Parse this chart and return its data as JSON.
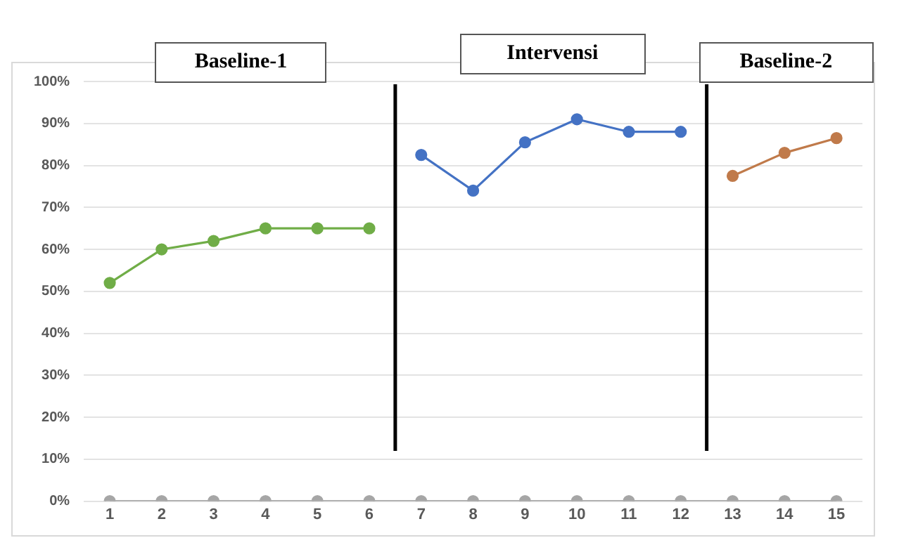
{
  "chart_data": {
    "type": "line",
    "x": [
      1,
      2,
      3,
      4,
      5,
      6,
      7,
      8,
      9,
      10,
      11,
      12,
      13,
      14,
      15
    ],
    "xlim": [
      0.5,
      15.5
    ],
    "xticks": [
      1,
      2,
      3,
      4,
      5,
      6,
      7,
      8,
      9,
      10,
      11,
      12,
      13,
      14,
      15
    ],
    "ylim": [
      0,
      100
    ],
    "yticks": [
      {
        "value": 0,
        "label": "0%"
      },
      {
        "value": 10,
        "label": "10%"
      },
      {
        "value": 20,
        "label": "20%"
      },
      {
        "value": 30,
        "label": "30%"
      },
      {
        "value": 40,
        "label": "40%"
      },
      {
        "value": 50,
        "label": "50%"
      },
      {
        "value": 60,
        "label": "60%"
      },
      {
        "value": 70,
        "label": "70%"
      },
      {
        "value": 80,
        "label": "80%"
      },
      {
        "value": 90,
        "label": "90%"
      },
      {
        "value": 100,
        "label": "100%"
      }
    ],
    "series": [
      {
        "color": "#70ad47",
        "values": [
          52,
          60,
          62,
          65,
          65,
          65,
          null,
          null,
          null,
          null,
          null,
          null,
          null,
          null,
          null
        ]
      },
      {
        "color": "#4472c4",
        "values": [
          null,
          null,
          null,
          null,
          null,
          null,
          82.5,
          74,
          85.5,
          91,
          88,
          88,
          null,
          null,
          null
        ]
      },
      {
        "color": "#c07a4a",
        "values": [
          null,
          null,
          null,
          null,
          null,
          null,
          null,
          null,
          null,
          null,
          null,
          null,
          77.5,
          83,
          86.5
        ]
      },
      {
        "color": "#a6a6a6",
        "values": [
          0,
          0,
          0,
          0,
          0,
          0,
          0,
          0,
          0,
          0,
          0,
          0,
          0,
          0,
          0
        ]
      }
    ],
    "ref_lines": [
      {
        "axis": "x",
        "value": 6.5,
        "color": "#000000"
      },
      {
        "axis": "x",
        "value": 12.5,
        "color": "#000000"
      }
    ],
    "annotations": [
      "Baseline-1",
      "Intervensi",
      "Baseline-2"
    ],
    "grid": "y",
    "legend": false,
    "marker": "circle",
    "line_style": "solid"
  }
}
